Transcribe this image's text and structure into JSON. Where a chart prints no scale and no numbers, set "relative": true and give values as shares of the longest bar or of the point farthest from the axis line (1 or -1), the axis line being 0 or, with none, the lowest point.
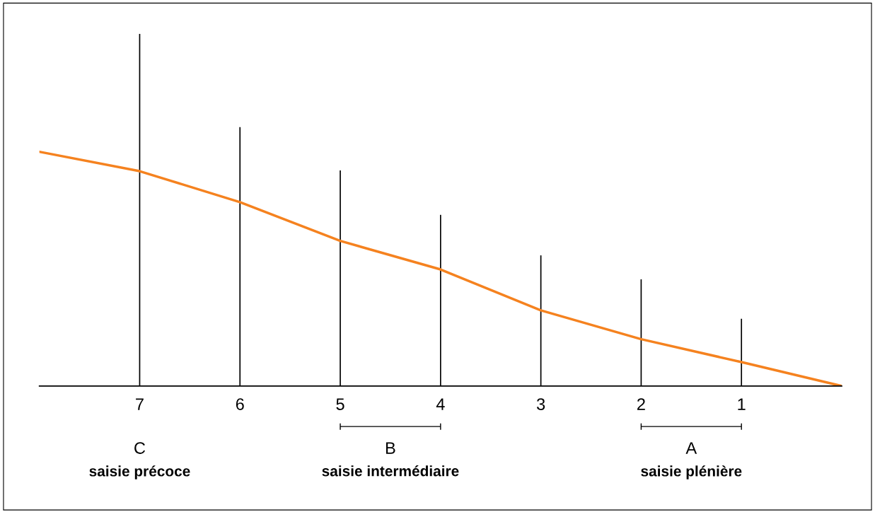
{
  "chart_data": {
    "type": "bar",
    "relative": true,
    "categories": [
      null,
      "7",
      "6",
      "5",
      "4",
      "3",
      "2",
      "1",
      null
    ],
    "series": [
      {
        "color": "#000000",
        "values": [
          null,
          1,
          0.735,
          0.612,
          0.486,
          0.371,
          0.303,
          0.191,
          null
        ]
      },
      {
        "type": "line",
        "color": "#f5821f",
        "values": [
          0.665,
          0.61,
          0.522,
          0.412,
          0.331,
          0.215,
          0.133,
          0.068,
          0
        ]
      }
    ],
    "annotations": [
      "C",
      "saisie précoce",
      "B",
      "saisie intermédiaire",
      "A",
      "saisie plénière"
    ]
  }
}
